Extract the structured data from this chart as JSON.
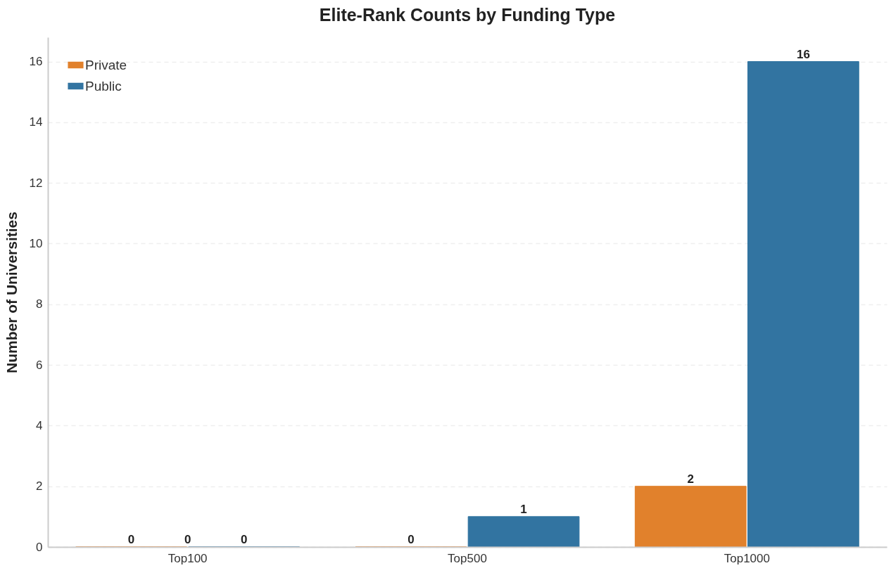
{
  "chart_data": {
    "type": "bar",
    "title": "Elite-Rank Counts by Funding Type",
    "ylabel": "Number of Universities",
    "categories": [
      "Top100",
      "Top500",
      "Top1000"
    ],
    "series": [
      {
        "name": "Private",
        "color": "#e1812c",
        "values": [
          0,
          0,
          2
        ]
      },
      {
        "name": "Public",
        "color": "#3274a1",
        "values": [
          0,
          1,
          16
        ]
      }
    ],
    "ylim": [
      0,
      16.8
    ],
    "yticks": [
      0,
      2,
      4,
      6,
      8,
      10,
      12,
      14,
      16
    ],
    "grid": "y",
    "legend": "top left",
    "data_labels": true,
    "annotations": [
      "0"
    ]
  }
}
